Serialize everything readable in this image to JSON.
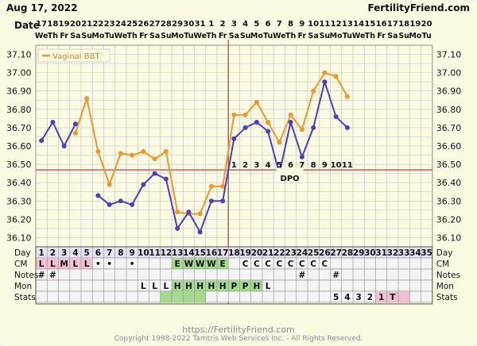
{
  "header": {
    "date": "Aug 17, 2022",
    "site": "FertilityFriend.com",
    "date_row_label": "Date"
  },
  "chart_data": {
    "type": "line",
    "title": "",
    "xlabel": "Day",
    "ylabel": "",
    "ylim": [
      36.05,
      37.15
    ],
    "grid": true,
    "legend_location": "top-left",
    "y_ticks": [
      "37.10",
      "37.00",
      "36.90",
      "36.80",
      "36.70",
      "36.60",
      "36.50",
      "36.40",
      "36.30",
      "36.20",
      "36.10"
    ],
    "dates": [
      "17",
      "18",
      "19",
      "20",
      "21",
      "22",
      "23",
      "24",
      "25",
      "26",
      "27",
      "28",
      "29",
      "30",
      "31",
      "1",
      "2",
      "3",
      "4",
      "5",
      "6",
      "7",
      "8",
      "9",
      "10",
      "11",
      "12",
      "13",
      "14",
      "15",
      "16",
      "17",
      "18",
      "19",
      "20"
    ],
    "weekdays": [
      "We",
      "Th",
      "Fr",
      "Sa",
      "Su",
      "Mo",
      "Tu",
      "We",
      "Th",
      "Fr",
      "Sa",
      "Su",
      "Mo",
      "Tu",
      "We",
      "Th",
      "Fr",
      "Sa",
      "Su",
      "Mo",
      "Tu",
      "We",
      "Th",
      "Fr",
      "Sa",
      "Su",
      "Mo",
      "Tu",
      "We",
      "Th",
      "Fr",
      "Sa",
      "Su",
      "Mo",
      "Tu"
    ],
    "day_numbers": [
      "1",
      "2",
      "3",
      "4",
      "5",
      "6",
      "7",
      "8",
      "9",
      "10",
      "11",
      "12",
      "13",
      "14",
      "15",
      "16",
      "17",
      "18",
      "19",
      "20",
      "21",
      "22",
      "23",
      "24",
      "25",
      "26",
      "27",
      "28",
      "29",
      "30",
      "31",
      "32",
      "33",
      "34",
      "35"
    ],
    "series": [
      {
        "name": "Vaginal BBT",
        "color": "#f0962a",
        "values": [
          null,
          null,
          null,
          36.67,
          36.86,
          36.57,
          36.39,
          36.56,
          36.55,
          36.57,
          36.53,
          36.57,
          36.24,
          36.23,
          36.23,
          36.38,
          36.38,
          36.77,
          36.77,
          36.84,
          36.73,
          36.62,
          36.77,
          36.69,
          36.9,
          37.0,
          36.98,
          36.87,
          null,
          null,
          null,
          null,
          null,
          null,
          null
        ]
      },
      {
        "name": "",
        "color": "#4a3fc2",
        "values": [
          36.63,
          36.73,
          36.6,
          36.72,
          null,
          36.33,
          36.28,
          36.3,
          36.28,
          36.39,
          36.45,
          36.42,
          36.15,
          36.24,
          36.13,
          36.3,
          36.3,
          36.64,
          36.7,
          36.73,
          36.68,
          36.45,
          36.73,
          36.54,
          36.7,
          36.95,
          36.76,
          36.7,
          null,
          null,
          null,
          null,
          null,
          null,
          null
        ]
      }
    ],
    "cover_line": 36.47,
    "ovulation_day": 17,
    "dpo_label": "DPO",
    "dpo_days": [
      18,
      19,
      20,
      21,
      22,
      23,
      24,
      25,
      26,
      27,
      28
    ],
    "dpo_numbers": [
      "1",
      "2",
      "3",
      "4",
      "5",
      "6",
      "7",
      "8",
      "9",
      "10",
      "11"
    ],
    "rows": {
      "labels": [
        "Day",
        "CM",
        "Notes",
        "Mon",
        "Stats"
      ],
      "cm": [
        "L",
        "L",
        "M",
        "L",
        "L",
        "•",
        "•",
        "",
        "•",
        "",
        "",
        "",
        "E",
        "W",
        "W",
        "W",
        "E",
        "",
        "C",
        "C",
        "C",
        "C",
        "C",
        "C",
        "C",
        "C",
        "",
        "",
        "",
        "",
        "",
        "",
        "",
        "",
        ""
      ],
      "cm_colors": [
        "#efc1d3",
        "#efc1d3",
        "#efc1d3",
        "#efc1d3",
        "#efc1d3",
        "",
        "",
        "",
        "",
        "",
        "",
        "",
        "#a3da8f",
        "#a3da8f",
        "#a3da8f",
        "#a3da8f",
        "#a3da8f",
        "",
        "",
        "",
        "",
        "",
        "",
        "",
        "",
        "",
        "",
        "",
        "",
        "",
        "",
        "",
        "",
        "",
        ""
      ],
      "notes": [
        "#",
        "#",
        "",
        "",
        "",
        "",
        "",
        "",
        "",
        "",
        "",
        "",
        "",
        "",
        "",
        "",
        "",
        "",
        "",
        "",
        "",
        "",
        "",
        "#",
        "",
        "",
        "#",
        "",
        "",
        "",
        "",
        "",
        "",
        "",
        ""
      ],
      "mon": [
        "",
        "",
        "",
        "",
        "",
        "",
        "",
        "",
        "",
        "L",
        "L",
        "L",
        "H",
        "H",
        "H",
        "H",
        "H",
        "P",
        "P",
        "H",
        "L",
        "",
        "",
        "",
        "",
        "",
        "",
        "",
        "",
        "",
        "",
        "",
        "",
        "",
        ""
      ],
      "mon_colors": [
        "",
        "",
        "",
        "",
        "",
        "",
        "",
        "",
        "",
        "",
        "",
        "",
        "#a3da8f",
        "#a3da8f",
        "#a3da8f",
        "#a3da8f",
        "#a3da8f",
        "#a3da8f",
        "#a3da8f",
        "#a3da8f",
        "",
        "",
        "",
        "",
        "",
        "",
        "",
        "",
        "",
        "",
        "",
        "",
        "",
        "",
        ""
      ],
      "stats": [
        "",
        "",
        "",
        "",
        "",
        "",
        "",
        "",
        "",
        "",
        "",
        "",
        "",
        "",
        "",
        "",
        "",
        "",
        "",
        "",
        "",
        "",
        "",
        "",
        "",
        "",
        "5",
        "4",
        "3",
        "2",
        "1",
        "T",
        "",
        "",
        ""
      ],
      "stats_colors": [
        "",
        "",
        "",
        "",
        "",
        "",
        "",
        "",
        "",
        "",
        "",
        "#a3da8f",
        "#a3da8f",
        "#a3da8f",
        "#a3da8f",
        "",
        "",
        "",
        "",
        "",
        "",
        "",
        "",
        "",
        "",
        "",
        "",
        "",
        "",
        "",
        "#efc1d3",
        "#efc1d3",
        "#efc1d3",
        "",
        ""
      ]
    }
  },
  "footer": {
    "url": "https://FertilityFriend.com",
    "copyright": "Copyright 1998-2022 Tamtris Web Services Inc. - All Rights Reserved."
  }
}
